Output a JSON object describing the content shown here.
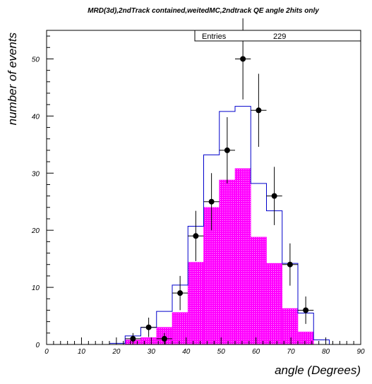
{
  "chart_data": {
    "type": "bar",
    "title": "MRD(3d),2ndTrack contained,weitedMC,2ndtrack QE angle 2hits only",
    "xlabel": "angle (Degrees)",
    "ylabel": "number of events",
    "xlim": [
      0,
      90
    ],
    "ylim": [
      0,
      55
    ],
    "x_ticks": [
      0,
      10,
      20,
      30,
      40,
      50,
      60,
      70,
      80,
      90
    ],
    "y_ticks": [
      0,
      10,
      20,
      30,
      40,
      50
    ],
    "bin_width": 4.5,
    "stats": {
      "label": "Entries",
      "value": "229"
    },
    "series": [
      {
        "style": "histogram-outline",
        "color": "#0000cc",
        "bin_edges": [
          0,
          4.5,
          9,
          13.5,
          18,
          22.5,
          27,
          31.5,
          36,
          40.5,
          45,
          49.5,
          54,
          58.5,
          63,
          67.5,
          72,
          76.5,
          81,
          85.5,
          90
        ],
        "values": [
          0,
          0,
          0,
          0,
          0.2,
          1.5,
          3,
          5.8,
          10.4,
          20.7,
          33.2,
          40.8,
          41.7,
          28.2,
          23.4,
          14.2,
          5.5,
          0.8,
          0,
          0
        ]
      },
      {
        "style": "histogram-filled",
        "color": "#ff00ff",
        "bin_edges": [
          0,
          4.5,
          9,
          13.5,
          18,
          22.5,
          27,
          31.5,
          36,
          40.5,
          45,
          49.5,
          54,
          58.5,
          63,
          67.5,
          72,
          76.5,
          81,
          85.5,
          90
        ],
        "values": [
          0,
          0,
          0,
          0,
          0,
          0.8,
          1.2,
          3.0,
          5.6,
          14.4,
          24.0,
          28.8,
          30.8,
          18.8,
          14.2,
          6.3,
          2.2,
          0,
          0,
          0
        ]
      },
      {
        "style": "points-errorbars",
        "color": "#000000",
        "x": [
          24.75,
          29.25,
          33.75,
          38.25,
          42.75,
          47.25,
          51.75,
          56.25,
          60.75,
          65.25,
          69.75,
          74.25
        ],
        "y": [
          1,
          3,
          1,
          9,
          19,
          25,
          34,
          50,
          41,
          26,
          14,
          6
        ],
        "yerr": [
          1.0,
          1.7,
          1.0,
          3.0,
          4.4,
          5.0,
          5.8,
          7.1,
          6.4,
          5.1,
          3.7,
          2.4
        ]
      }
    ]
  }
}
